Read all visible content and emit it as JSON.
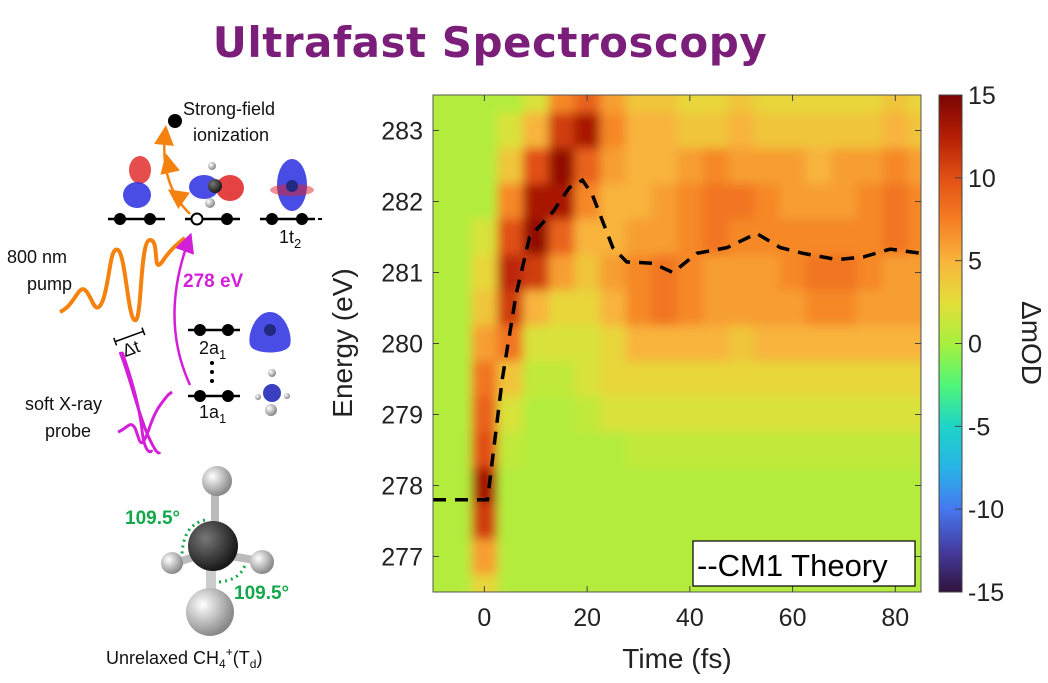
{
  "title": "Ultrafast Spectroscopy",
  "diagram": {
    "ionization_line1": "Strong-field",
    "ionization_line2": "ionization",
    "pump_line1": "800 nm",
    "pump_line2": "pump",
    "transition_energy": "278 eV",
    "delay": "Δt",
    "probe_line1": "soft X-ray",
    "probe_line2": "probe",
    "levels": [
      {
        "main": "1t",
        "sub": "2"
      },
      {
        "main": "2a",
        "sub": "1"
      },
      {
        "main": "1a",
        "sub": "1"
      }
    ],
    "angle_labels": [
      "109.5°",
      "109.5°"
    ],
    "molecule_caption": {
      "pre": "Unrelaxed CH",
      "sub1": "4",
      "sup": "+",
      "mid": "(T",
      "sub2": "d",
      "post": ")"
    },
    "colors": {
      "pump": "#f5820f",
      "probe": "#d41fd8",
      "angle": "#14a84c",
      "orbital_pos": "#2a2ee0",
      "orbital_neg": "#e02222"
    }
  },
  "chart_data": {
    "type": "heatmap",
    "xlabel": "Time (fs)",
    "ylabel": "Energy (eV)",
    "colorbar_label": "ΔmOD",
    "xlim": [
      -10,
      85
    ],
    "ylim": [
      276.5,
      283.5
    ],
    "clim": [
      -15,
      15
    ],
    "colormap": "turbo",
    "xticks": [
      0,
      20,
      40,
      60,
      80
    ],
    "yticks": [
      277,
      278,
      279,
      280,
      281,
      282,
      283
    ],
    "cticks": [
      -15,
      -10,
      -5,
      0,
      5,
      10,
      15
    ],
    "x": [
      -10,
      -5,
      0,
      5,
      10,
      15,
      20,
      25,
      30,
      35,
      40,
      45,
      50,
      55,
      60,
      65,
      70,
      75,
      80,
      85
    ],
    "y": [
      283.5,
      283,
      282.5,
      282,
      281.5,
      281,
      280.5,
      280,
      279.5,
      279,
      278.5,
      278,
      277.5,
      277,
      276.5
    ],
    "z": [
      [
        0.5,
        0.5,
        0.5,
        0.5,
        2,
        7,
        9,
        6,
        4,
        4,
        3,
        3,
        4,
        3,
        3,
        3,
        3,
        3,
        4,
        3
      ],
      [
        0.5,
        0.5,
        0.5,
        2,
        5,
        11,
        13,
        7,
        5,
        5,
        4,
        4,
        5,
        4,
        4,
        4,
        4,
        4,
        5,
        4
      ],
      [
        0.5,
        0.5,
        0.5,
        4,
        10,
        14,
        9,
        6,
        5,
        5,
        6,
        7,
        6,
        6,
        6,
        5,
        6,
        6,
        7,
        6
      ],
      [
        0.5,
        0.5,
        0.5,
        7,
        13,
        13,
        7,
        5,
        5,
        6,
        7,
        8,
        8,
        7,
        6,
        6,
        6,
        7,
        8,
        7
      ],
      [
        0.5,
        0.5,
        2,
        10,
        14,
        9,
        5,
        5,
        6,
        6,
        7,
        8,
        7,
        7,
        7,
        7,
        7,
        7,
        8,
        7
      ],
      [
        0.5,
        0.5,
        3,
        12,
        11,
        6,
        4,
        6,
        7,
        8,
        7,
        6,
        6,
        6,
        7,
        8,
        8,
        7,
        6,
        6
      ],
      [
        0.5,
        0.5,
        4,
        11,
        5,
        3,
        3,
        5,
        7,
        8,
        7,
        6,
        6,
        6,
        6,
        7,
        7,
        6,
        6,
        6
      ],
      [
        0.5,
        0.5,
        6,
        8,
        2,
        2,
        2,
        3,
        5,
        5,
        5,
        5,
        4,
        5,
        5,
        5,
        5,
        5,
        5,
        5
      ],
      [
        0.5,
        0.5,
        8,
        4,
        1,
        1,
        2,
        3,
        3,
        3,
        3,
        3,
        3,
        3,
        3,
        3,
        3,
        3,
        3,
        3
      ],
      [
        0.5,
        0.5,
        9,
        2,
        0.5,
        0.5,
        1,
        2,
        2,
        2,
        2,
        2,
        2,
        2,
        2,
        2,
        2,
        2,
        2,
        2
      ],
      [
        0.5,
        0.5,
        10,
        1,
        0.5,
        0.5,
        0.5,
        0.5,
        1,
        1,
        1,
        1,
        1,
        1,
        1,
        1,
        1,
        1,
        1,
        1
      ],
      [
        0.5,
        0.5,
        13,
        0.5,
        0.5,
        0.5,
        0.5,
        0.5,
        0.5,
        0.5,
        0.5,
        0.5,
        0.5,
        0.5,
        0.5,
        0.5,
        0.5,
        0.5,
        0.5,
        0.5
      ],
      [
        0.5,
        0.5,
        11,
        0.5,
        0.5,
        0.5,
        0.5,
        0.5,
        0.5,
        0.5,
        0.5,
        0.5,
        0.5,
        0.5,
        0.5,
        0.5,
        0.5,
        0.5,
        0.5,
        0.5
      ],
      [
        0.5,
        0.5,
        6,
        0.5,
        0.5,
        0.5,
        0.5,
        0.5,
        0.5,
        0.5,
        0.5,
        0.5,
        0.5,
        0.5,
        0.5,
        0.5,
        0.5,
        0.5,
        0.5,
        0.5
      ],
      [
        0.5,
        0.5,
        3,
        0.5,
        0.5,
        0.5,
        0.5,
        0.5,
        0.5,
        0.5,
        0.5,
        0.5,
        0.5,
        0.5,
        0.5,
        0.5,
        0.5,
        0.5,
        0.5,
        0.5
      ]
    ],
    "series": [
      {
        "name": "CM1 Theory",
        "style": "dashed",
        "color": "#000000",
        "x": [
          -10,
          0.6,
          3.5,
          6.2,
          8.8,
          13.3,
          16.6,
          19.1,
          21,
          25,
          27.7,
          32.8,
          36.7,
          41.4,
          47.3,
          53,
          57.6,
          62,
          68.7,
          73.8,
          79,
          85
        ],
        "y": [
          277.8,
          277.8,
          279.5,
          280.7,
          281.5,
          281.85,
          282.2,
          282.3,
          282.1,
          281.35,
          281.15,
          281.13,
          281.0,
          281.27,
          281.35,
          281.55,
          281.35,
          281.27,
          281.18,
          281.22,
          281.33,
          281.27
        ]
      }
    ],
    "legend": {
      "entry": "--CM1 Theory",
      "placement": "bottom-right"
    }
  }
}
